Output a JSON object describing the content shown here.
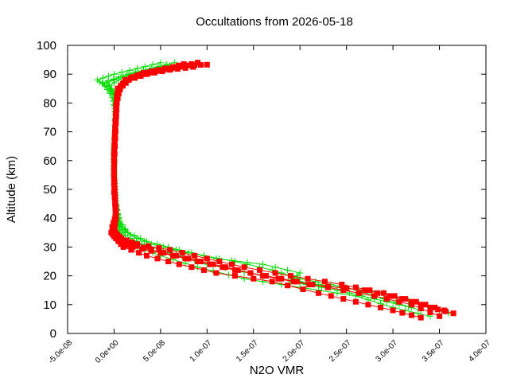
{
  "chart_data": {
    "type": "scatter",
    "title": "Occultations from 2026-05-18",
    "xlabel": "N2O VMR",
    "ylabel": "Altitude (km)",
    "xlim": [
      -5e-08,
      4e-07
    ],
    "ylim": [
      0,
      100
    ],
    "xticks": [
      "-5.0e-08",
      "0.0e+00",
      "5.0e-08",
      "1.0e-07",
      "1.5e-07",
      "2.0e-07",
      "2.5e-07",
      "3.0e-07",
      "3.5e-07",
      "4.0e-07"
    ],
    "yticks": [
      "0",
      "10",
      "20",
      "30",
      "40",
      "50",
      "60",
      "70",
      "80",
      "90",
      "100"
    ],
    "grid": false,
    "legend": "none",
    "series": [
      {
        "color": "#00dd00",
        "marker": "plus",
        "profiles": [
          [
            [
              3.6e-07,
              7
            ],
            [
              3.3e-07,
              10
            ],
            [
              2.9e-07,
              14
            ],
            [
              2.2e-07,
              17
            ],
            [
              1.6e-07,
              20
            ],
            [
              1e-07,
              24
            ],
            [
              6e-08,
              28
            ],
            [
              3e-08,
              31
            ],
            [
              1.2e-08,
              34
            ],
            [
              6e-09,
              37
            ],
            [
              4e-09,
              41
            ],
            [
              2e-09,
              46
            ],
            [
              1e-09,
              52
            ],
            [
              0,
              58
            ],
            [
              0,
              65
            ],
            [
              1e-09,
              72
            ],
            [
              1e-09,
              78
            ],
            [
              -2e-09,
              82
            ],
            [
              -1e-08,
              86
            ],
            [
              -1.8e-08,
              88
            ],
            [
              0,
              90
            ],
            [
              2.5e-08,
              92
            ],
            [
              5e-08,
              94
            ]
          ],
          [
            [
              3.4e-07,
              6
            ],
            [
              3e-07,
              9
            ],
            [
              2.6e-07,
              13
            ],
            [
              2e-07,
              16
            ],
            [
              1.4e-07,
              19
            ],
            [
              9e-08,
              23
            ],
            [
              5e-08,
              27
            ],
            [
              2.5e-08,
              30
            ],
            [
              1e-08,
              33
            ],
            [
              5e-09,
              36
            ],
            [
              4e-09,
              40
            ],
            [
              2e-09,
              45
            ],
            [
              1e-09,
              51
            ],
            [
              0,
              57
            ],
            [
              0,
              64
            ],
            [
              1e-09,
              70
            ],
            [
              1e-09,
              77
            ],
            [
              0,
              83
            ],
            [
              -1.2e-08,
              87
            ],
            [
              5e-09,
              89
            ],
            [
              3e-08,
              91
            ],
            [
              5.5e-08,
              93
            ]
          ],
          [
            [
              3.2e-07,
              9
            ],
            [
              2.8e-07,
              12
            ],
            [
              2.4e-07,
              15
            ],
            [
              1.9e-07,
              18
            ],
            [
              2e-07,
              21
            ],
            [
              1.6e-07,
              24
            ],
            [
              1.1e-07,
              26
            ],
            [
              7e-08,
              29
            ],
            [
              3.5e-08,
              32
            ],
            [
              1.5e-08,
              35
            ],
            [
              6e-09,
              39
            ],
            [
              3e-09,
              43
            ],
            [
              1e-09,
              49
            ],
            [
              0,
              55
            ],
            [
              0,
              62
            ],
            [
              1e-09,
              69
            ],
            [
              2e-09,
              76
            ],
            [
              1e-09,
              82
            ],
            [
              -5e-09,
              86
            ],
            [
              1e-08,
              89
            ],
            [
              3.5e-08,
              91
            ],
            [
              6e-08,
              93
            ]
          ],
          [
            [
              3.3e-07,
              8
            ],
            [
              2.9e-07,
              12
            ],
            [
              2.5e-07,
              16
            ],
            [
              2e-07,
              19
            ],
            [
              1.7e-07,
              22
            ],
            [
              1.3e-07,
              25
            ],
            [
              8e-08,
              28
            ],
            [
              4e-08,
              31
            ],
            [
              1.8e-08,
              34
            ],
            [
              8e-09,
              37
            ],
            [
              5e-09,
              40
            ],
            [
              2e-09,
              44
            ],
            [
              1e-09,
              50
            ],
            [
              0,
              56
            ],
            [
              0,
              63
            ],
            [
              1e-09,
              70
            ],
            [
              1e-09,
              77
            ],
            [
              0,
              84
            ],
            [
              -8e-09,
              87
            ],
            [
              1.5e-08,
              90
            ],
            [
              4e-08,
              92
            ],
            [
              6.5e-08,
              94
            ]
          ]
        ]
      },
      {
        "color": "#ff0000",
        "marker": "square",
        "profiles": [
          [
            [
              3.65e-07,
              7
            ],
            [
              3.4e-07,
              9
            ],
            [
              3.1e-07,
              12
            ],
            [
              2.7e-07,
              15
            ],
            [
              2.1e-07,
              17
            ],
            [
              1.6e-07,
              20
            ],
            [
              1.2e-07,
              23
            ],
            [
              8e-08,
              26
            ],
            [
              4e-08,
              29
            ],
            [
              1.5e-08,
              31
            ],
            [
              5e-09,
              33
            ],
            [
              0,
              36
            ],
            [
              2e-09,
              40
            ],
            [
              1e-09,
              45
            ],
            [
              0,
              52
            ],
            [
              0,
              60
            ],
            [
              1e-09,
              68
            ],
            [
              2e-09,
              75
            ],
            [
              3e-09,
              82
            ],
            [
              8e-09,
              86
            ],
            [
              2e-08,
              89
            ],
            [
              4.5e-08,
              91
            ],
            [
              7e-08,
              92.5
            ],
            [
              9e-08,
              94
            ]
          ],
          [
            [
              3.5e-07,
              6
            ],
            [
              3.2e-07,
              10
            ],
            [
              2.8e-07,
              13
            ],
            [
              2.3e-07,
              16
            ],
            [
              1.8e-07,
              19
            ],
            [
              1.3e-07,
              22
            ],
            [
              9e-08,
              25
            ],
            [
              5e-08,
              28
            ],
            [
              2e-08,
              30
            ],
            [
              6e-09,
              32
            ],
            [
              0,
              34
            ],
            [
              -2e-09,
              37
            ],
            [
              2e-09,
              41
            ],
            [
              1e-09,
              47
            ],
            [
              0,
              54
            ],
            [
              0,
              62
            ],
            [
              1e-09,
              70
            ],
            [
              2e-09,
              78
            ],
            [
              4e-09,
              84
            ],
            [
              1.2e-08,
              88
            ],
            [
              3e-08,
              90
            ],
            [
              5.5e-08,
              92
            ],
            [
              8e-08,
              93
            ],
            [
              1e-07,
              93.3
            ]
          ],
          [
            [
              3.3e-07,
              5.5
            ],
            [
              3e-07,
              8
            ],
            [
              2.6e-07,
              11
            ],
            [
              2.2e-07,
              14
            ],
            [
              1.7e-07,
              18
            ],
            [
              1.1e-07,
              21
            ],
            [
              7e-08,
              24
            ],
            [
              3.5e-08,
              27
            ],
            [
              1e-08,
              30
            ],
            [
              2e-09,
              33
            ],
            [
              -3e-09,
              35
            ],
            [
              1e-09,
              38
            ],
            [
              2e-09,
              43
            ],
            [
              0,
              49
            ],
            [
              0,
              57
            ],
            [
              1e-09,
              65
            ],
            [
              2e-09,
              73
            ],
            [
              3e-09,
              80
            ],
            [
              6e-09,
              85
            ],
            [
              1.6e-08,
              88
            ],
            [
              3.5e-08,
              90
            ],
            [
              6e-08,
              91.5
            ],
            [
              8.5e-08,
              92.5
            ]
          ],
          [
            [
              3.55e-07,
              8
            ],
            [
              3.25e-07,
              11
            ],
            [
              2.9e-07,
              14
            ],
            [
              2.45e-07,
              17
            ],
            [
              1.9e-07,
              20
            ],
            [
              1.4e-07,
              23
            ],
            [
              1e-07,
              26
            ],
            [
              6e-08,
              29
            ],
            [
              2.5e-08,
              31
            ],
            [
              8e-09,
              33
            ],
            [
              1e-09,
              35
            ],
            [
              0,
              38
            ],
            [
              2e-09,
              42
            ],
            [
              1e-09,
              48
            ],
            [
              0,
              55
            ],
            [
              0,
              63
            ],
            [
              1e-09,
              71
            ],
            [
              2e-09,
              79
            ],
            [
              4e-09,
              85
            ],
            [
              1.4e-08,
              88
            ],
            [
              3.2e-08,
              90.5
            ],
            [
              5.8e-08,
              92
            ],
            [
              7.5e-08,
              93.5
            ]
          ]
        ]
      }
    ]
  }
}
